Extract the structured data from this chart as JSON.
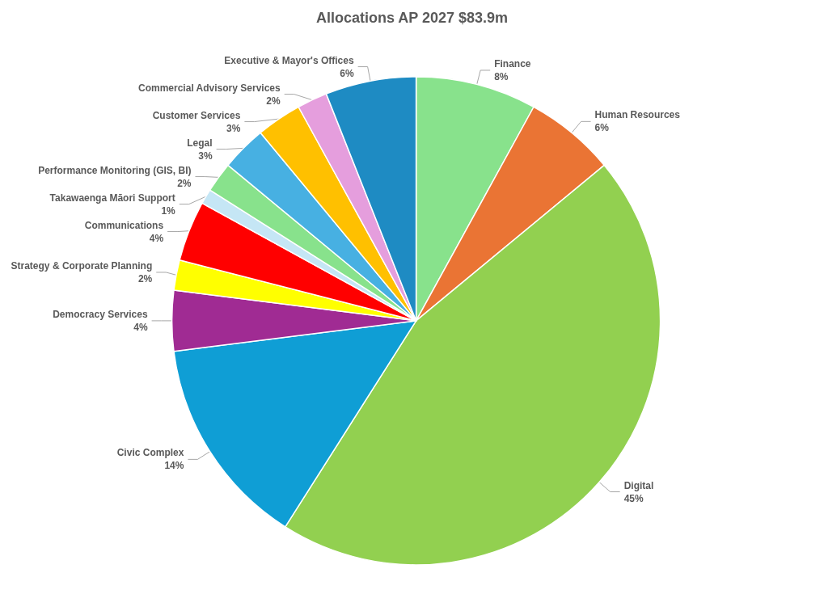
{
  "chart_data": {
    "type": "pie",
    "title": "Allocations AP 2027 $83.9m",
    "categories": [
      "Finance",
      "Human Resources",
      "Digital",
      "Civic Complex",
      "Democracy Services",
      "Strategy & Corporate Planning",
      "Communications",
      "Takawaenga Māori Support",
      "Performance Monitoring (GIS, BI)",
      "Legal",
      "Customer Services",
      "Commercial Advisory Services",
      "Executive & Mayor's Offices"
    ],
    "values": [
      8,
      6,
      45,
      14,
      4,
      2,
      4,
      1,
      2,
      3,
      3,
      2,
      6
    ],
    "value_labels": [
      "8%",
      "6%",
      "45%",
      "14%",
      "4%",
      "2%",
      "4%",
      "1%",
      "2%",
      "3%",
      "3%",
      "2%",
      "6%"
    ],
    "colors": [
      "#88e28c",
      "#ea7434",
      "#92d050",
      "#0f9ed5",
      "#a02b93",
      "#ffff00",
      "#ff0000",
      "#c5e6f5",
      "#88e28c",
      "#47b0e2",
      "#ffc000",
      "#e59edd",
      "#1e8bc3"
    ],
    "legend": false
  }
}
